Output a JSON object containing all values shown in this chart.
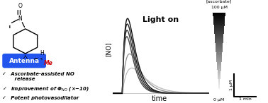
{
  "bg_color": "#ffffff",
  "green_color": "#7FE020",
  "light_on_text": "Light on",
  "xlabel": "time",
  "ylabel": "[NO]",
  "ascorbate_label": "[ascorbate]",
  "ascorbate_top": "100 μM",
  "ascorbate_bottom": "0 μM",
  "scalebar_x_label": "1 min",
  "scalebar_y_label": "1 μM",
  "antenna_text": "Antenna",
  "antenna_color": "#2255ee",
  "fig_width": 3.78,
  "fig_height": 1.46,
  "dpi": 100
}
